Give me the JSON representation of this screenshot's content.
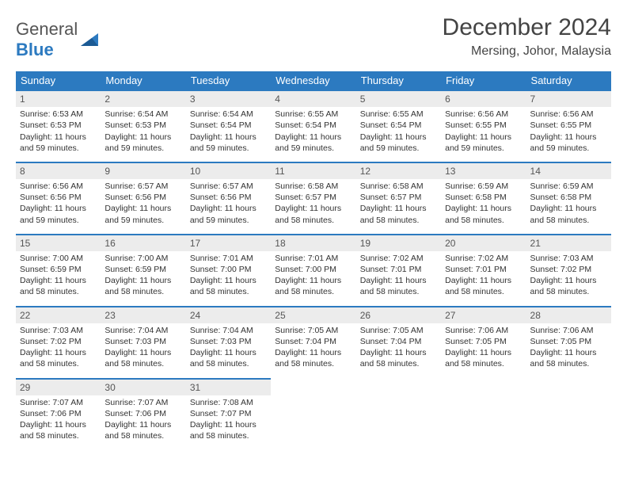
{
  "logo": {
    "text1": "General",
    "text2": "Blue"
  },
  "title": "December 2024",
  "location": "Mersing, Johor, Malaysia",
  "colors": {
    "header_bg": "#2c7ac0",
    "header_fg": "#ffffff",
    "daynum_bg": "#ececec",
    "row_border": "#2c7ac0",
    "text": "#333333",
    "title_color": "#444444"
  },
  "columns": [
    "Sunday",
    "Monday",
    "Tuesday",
    "Wednesday",
    "Thursday",
    "Friday",
    "Saturday"
  ],
  "days": [
    {
      "n": 1,
      "rise": "6:53 AM",
      "set": "6:53 PM",
      "dl": "11 hours and 59 minutes."
    },
    {
      "n": 2,
      "rise": "6:54 AM",
      "set": "6:53 PM",
      "dl": "11 hours and 59 minutes."
    },
    {
      "n": 3,
      "rise": "6:54 AM",
      "set": "6:54 PM",
      "dl": "11 hours and 59 minutes."
    },
    {
      "n": 4,
      "rise": "6:55 AM",
      "set": "6:54 PM",
      "dl": "11 hours and 59 minutes."
    },
    {
      "n": 5,
      "rise": "6:55 AM",
      "set": "6:54 PM",
      "dl": "11 hours and 59 minutes."
    },
    {
      "n": 6,
      "rise": "6:56 AM",
      "set": "6:55 PM",
      "dl": "11 hours and 59 minutes."
    },
    {
      "n": 7,
      "rise": "6:56 AM",
      "set": "6:55 PM",
      "dl": "11 hours and 59 minutes."
    },
    {
      "n": 8,
      "rise": "6:56 AM",
      "set": "6:56 PM",
      "dl": "11 hours and 59 minutes."
    },
    {
      "n": 9,
      "rise": "6:57 AM",
      "set": "6:56 PM",
      "dl": "11 hours and 59 minutes."
    },
    {
      "n": 10,
      "rise": "6:57 AM",
      "set": "6:56 PM",
      "dl": "11 hours and 59 minutes."
    },
    {
      "n": 11,
      "rise": "6:58 AM",
      "set": "6:57 PM",
      "dl": "11 hours and 58 minutes."
    },
    {
      "n": 12,
      "rise": "6:58 AM",
      "set": "6:57 PM",
      "dl": "11 hours and 58 minutes."
    },
    {
      "n": 13,
      "rise": "6:59 AM",
      "set": "6:58 PM",
      "dl": "11 hours and 58 minutes."
    },
    {
      "n": 14,
      "rise": "6:59 AM",
      "set": "6:58 PM",
      "dl": "11 hours and 58 minutes."
    },
    {
      "n": 15,
      "rise": "7:00 AM",
      "set": "6:59 PM",
      "dl": "11 hours and 58 minutes."
    },
    {
      "n": 16,
      "rise": "7:00 AM",
      "set": "6:59 PM",
      "dl": "11 hours and 58 minutes."
    },
    {
      "n": 17,
      "rise": "7:01 AM",
      "set": "7:00 PM",
      "dl": "11 hours and 58 minutes."
    },
    {
      "n": 18,
      "rise": "7:01 AM",
      "set": "7:00 PM",
      "dl": "11 hours and 58 minutes."
    },
    {
      "n": 19,
      "rise": "7:02 AM",
      "set": "7:01 PM",
      "dl": "11 hours and 58 minutes."
    },
    {
      "n": 20,
      "rise": "7:02 AM",
      "set": "7:01 PM",
      "dl": "11 hours and 58 minutes."
    },
    {
      "n": 21,
      "rise": "7:03 AM",
      "set": "7:02 PM",
      "dl": "11 hours and 58 minutes."
    },
    {
      "n": 22,
      "rise": "7:03 AM",
      "set": "7:02 PM",
      "dl": "11 hours and 58 minutes."
    },
    {
      "n": 23,
      "rise": "7:04 AM",
      "set": "7:03 PM",
      "dl": "11 hours and 58 minutes."
    },
    {
      "n": 24,
      "rise": "7:04 AM",
      "set": "7:03 PM",
      "dl": "11 hours and 58 minutes."
    },
    {
      "n": 25,
      "rise": "7:05 AM",
      "set": "7:04 PM",
      "dl": "11 hours and 58 minutes."
    },
    {
      "n": 26,
      "rise": "7:05 AM",
      "set": "7:04 PM",
      "dl": "11 hours and 58 minutes."
    },
    {
      "n": 27,
      "rise": "7:06 AM",
      "set": "7:05 PM",
      "dl": "11 hours and 58 minutes."
    },
    {
      "n": 28,
      "rise": "7:06 AM",
      "set": "7:05 PM",
      "dl": "11 hours and 58 minutes."
    },
    {
      "n": 29,
      "rise": "7:07 AM",
      "set": "7:06 PM",
      "dl": "11 hours and 58 minutes."
    },
    {
      "n": 30,
      "rise": "7:07 AM",
      "set": "7:06 PM",
      "dl": "11 hours and 58 minutes."
    },
    {
      "n": 31,
      "rise": "7:08 AM",
      "set": "7:07 PM",
      "dl": "11 hours and 58 minutes."
    }
  ],
  "labels": {
    "sunrise": "Sunrise:",
    "sunset": "Sunset:",
    "daylight": "Daylight:"
  },
  "layout": {
    "first_weekday_index": 0,
    "weeks": 5
  }
}
